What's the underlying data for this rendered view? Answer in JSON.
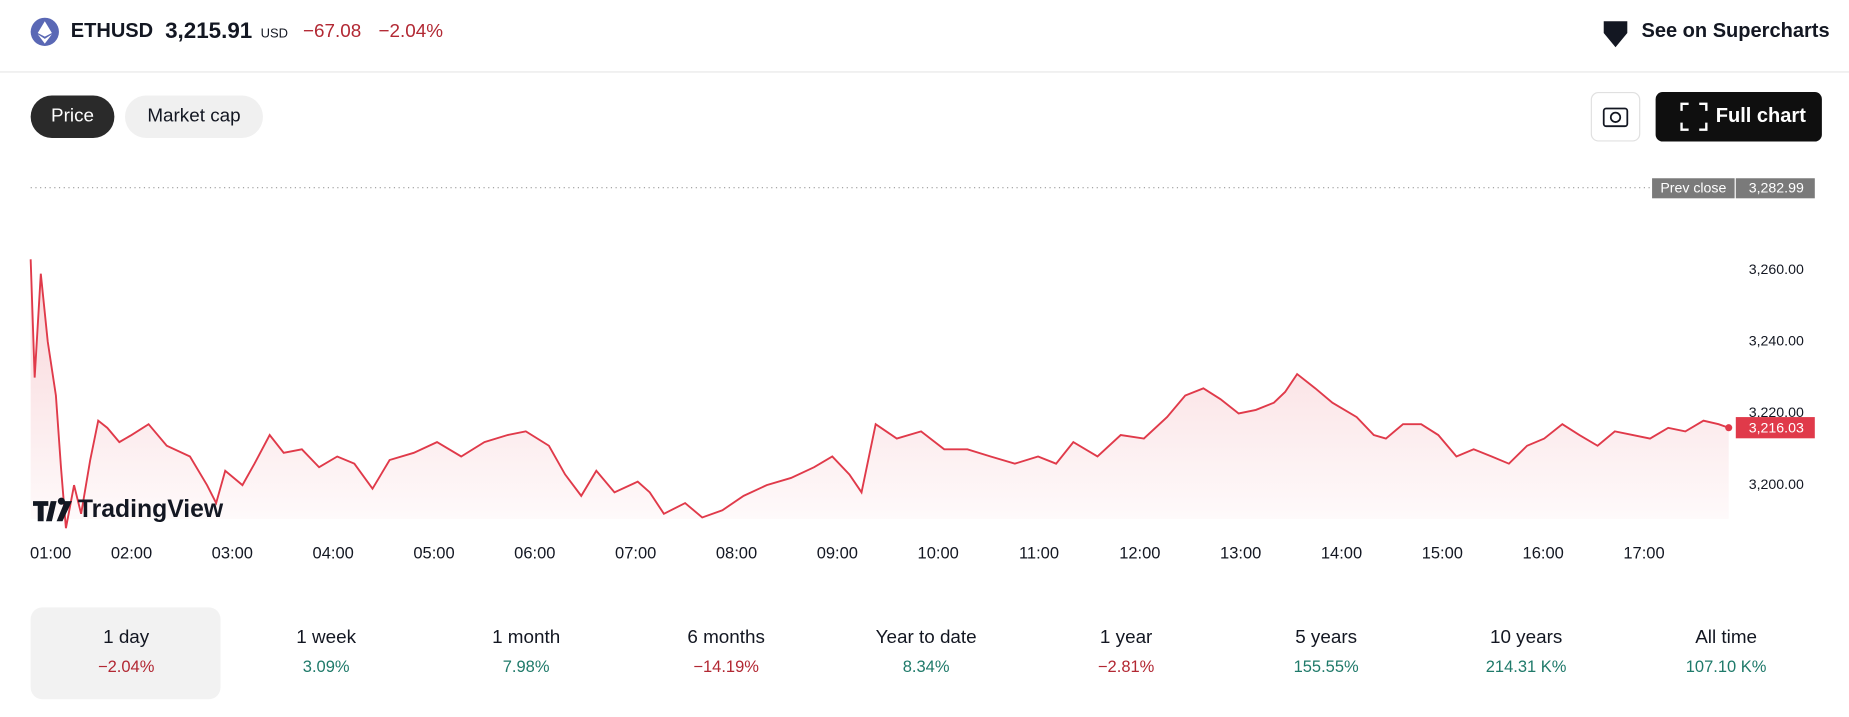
{
  "header": {
    "symbol": "ETHUSD",
    "price": "3,215.91",
    "currency": "USD",
    "change": "−67.08",
    "change_pct": "−2.04%",
    "link": "See on Supercharts"
  },
  "tabs": [
    "Price",
    "Market cap"
  ],
  "full_chart": "Full chart",
  "watermark": "TradingView",
  "chart_data": {
    "type": "line",
    "color": "#e03a4a",
    "x": [
      1.0,
      1.04,
      1.1,
      1.17,
      1.25,
      1.3,
      1.35,
      1.43,
      1.5,
      1.59,
      1.67,
      1.76,
      1.88,
      2.0,
      2.17,
      2.35,
      2.58,
      2.75,
      2.84,
      2.93,
      3.1,
      3.22,
      3.37,
      3.51,
      3.69,
      3.86,
      4.04,
      4.21,
      4.39,
      4.56,
      4.8,
      5.03,
      5.27,
      5.5,
      5.73,
      5.91,
      6.14,
      6.3,
      6.46,
      6.61,
      6.79,
      7.02,
      7.14,
      7.28,
      7.49,
      7.66,
      7.86,
      8.07,
      8.3,
      8.54,
      8.77,
      8.95,
      9.12,
      9.24,
      9.38,
      9.59,
      9.83,
      10.06,
      10.29,
      10.52,
      10.76,
      10.99,
      11.17,
      11.34,
      11.58,
      11.81,
      12.04,
      12.27,
      12.45,
      12.63,
      12.8,
      12.98,
      13.15,
      13.33,
      13.44,
      13.56,
      13.74,
      13.91,
      14.15,
      14.32,
      14.44,
      14.61,
      14.79,
      14.96,
      15.14,
      15.31,
      15.49,
      15.66,
      15.84,
      16.01,
      16.19,
      16.36,
      16.54,
      16.71,
      16.89,
      17.06,
      17.24,
      17.41,
      17.59,
      17.74,
      17.84
    ],
    "values": [
      3263,
      3230,
      3259,
      3240,
      3225,
      3205,
      3188,
      3200,
      3192,
      3207,
      3218,
      3216,
      3212,
      3214,
      3217,
      3211,
      3208,
      3200,
      3195,
      3204,
      3200,
      3206,
      3214,
      3209,
      3210,
      3205,
      3208,
      3206,
      3199,
      3207,
      3209,
      3212,
      3208,
      3212,
      3214,
      3215,
      3211,
      3203,
      3197,
      3204,
      3198,
      3201,
      3198,
      3192,
      3195,
      3191,
      3193,
      3197,
      3200,
      3202,
      3205,
      3208,
      3203,
      3198,
      3217,
      3213,
      3215,
      3210,
      3210,
      3208,
      3206,
      3208,
      3206,
      3212,
      3208,
      3214,
      3213,
      3219,
      3225,
      3227,
      3224,
      3220,
      3221,
      3223,
      3226,
      3231,
      3227,
      3223,
      3219,
      3214,
      3213,
      3217,
      3217,
      3214,
      3208,
      3210,
      3208,
      3206,
      3211,
      3213,
      3217,
      3214,
      3211,
      3215,
      3214,
      3213,
      3216,
      3215,
      3218,
      3217,
      3216.03
    ],
    "xlim": [
      1.0,
      17.84
    ],
    "xticks": [
      {
        "value": 1,
        "label": "01:00"
      },
      {
        "value": 2,
        "label": "02:00"
      },
      {
        "value": 3,
        "label": "03:00"
      },
      {
        "value": 4,
        "label": "04:00"
      },
      {
        "value": 5,
        "label": "05:00"
      },
      {
        "value": 6,
        "label": "06:00"
      },
      {
        "value": 7,
        "label": "07:00"
      },
      {
        "value": 8,
        "label": "08:00"
      },
      {
        "value": 9,
        "label": "09:00"
      },
      {
        "value": 10,
        "label": "10:00"
      },
      {
        "value": 11,
        "label": "11:00"
      },
      {
        "value": 12,
        "label": "12:00"
      },
      {
        "value": 13,
        "label": "13:00"
      },
      {
        "value": 14,
        "label": "14:00"
      },
      {
        "value": 15,
        "label": "15:00"
      },
      {
        "value": 16,
        "label": "16:00"
      },
      {
        "value": 17,
        "label": "17:00"
      }
    ],
    "ylim": [
      3185,
      3286
    ],
    "yticks": [
      {
        "value": 3200,
        "label": "3,200.00"
      },
      {
        "value": 3220,
        "label": "3,220.00"
      },
      {
        "value": 3240,
        "label": "3,240.00"
      },
      {
        "value": 3260,
        "label": "3,260.00"
      }
    ],
    "prev_close": {
      "label": "Prev close",
      "value": 3282.99,
      "value_label": "3,282.99"
    },
    "last_price": {
      "value": 3216.03,
      "label": "3,216.03"
    }
  },
  "periods": [
    {
      "label": "1 day",
      "change": "−2.04%",
      "color": "#b22833"
    },
    {
      "label": "1 week",
      "change": "3.09%",
      "color": "#1f7a6a"
    },
    {
      "label": "1 month",
      "change": "7.98%",
      "color": "#1f7a6a"
    },
    {
      "label": "6 months",
      "change": "−14.19%",
      "color": "#b22833"
    },
    {
      "label": "Year to date",
      "change": "8.34%",
      "color": "#1f7a6a"
    },
    {
      "label": "1 year",
      "change": "−2.81%",
      "color": "#b22833"
    },
    {
      "label": "5 years",
      "change": "155.55%",
      "color": "#1f7a6a"
    },
    {
      "label": "10 years",
      "change": "214.31 K%",
      "color": "#1f7a6a"
    },
    {
      "label": "All time",
      "change": "107.10 K%",
      "color": "#1f7a6a"
    }
  ]
}
